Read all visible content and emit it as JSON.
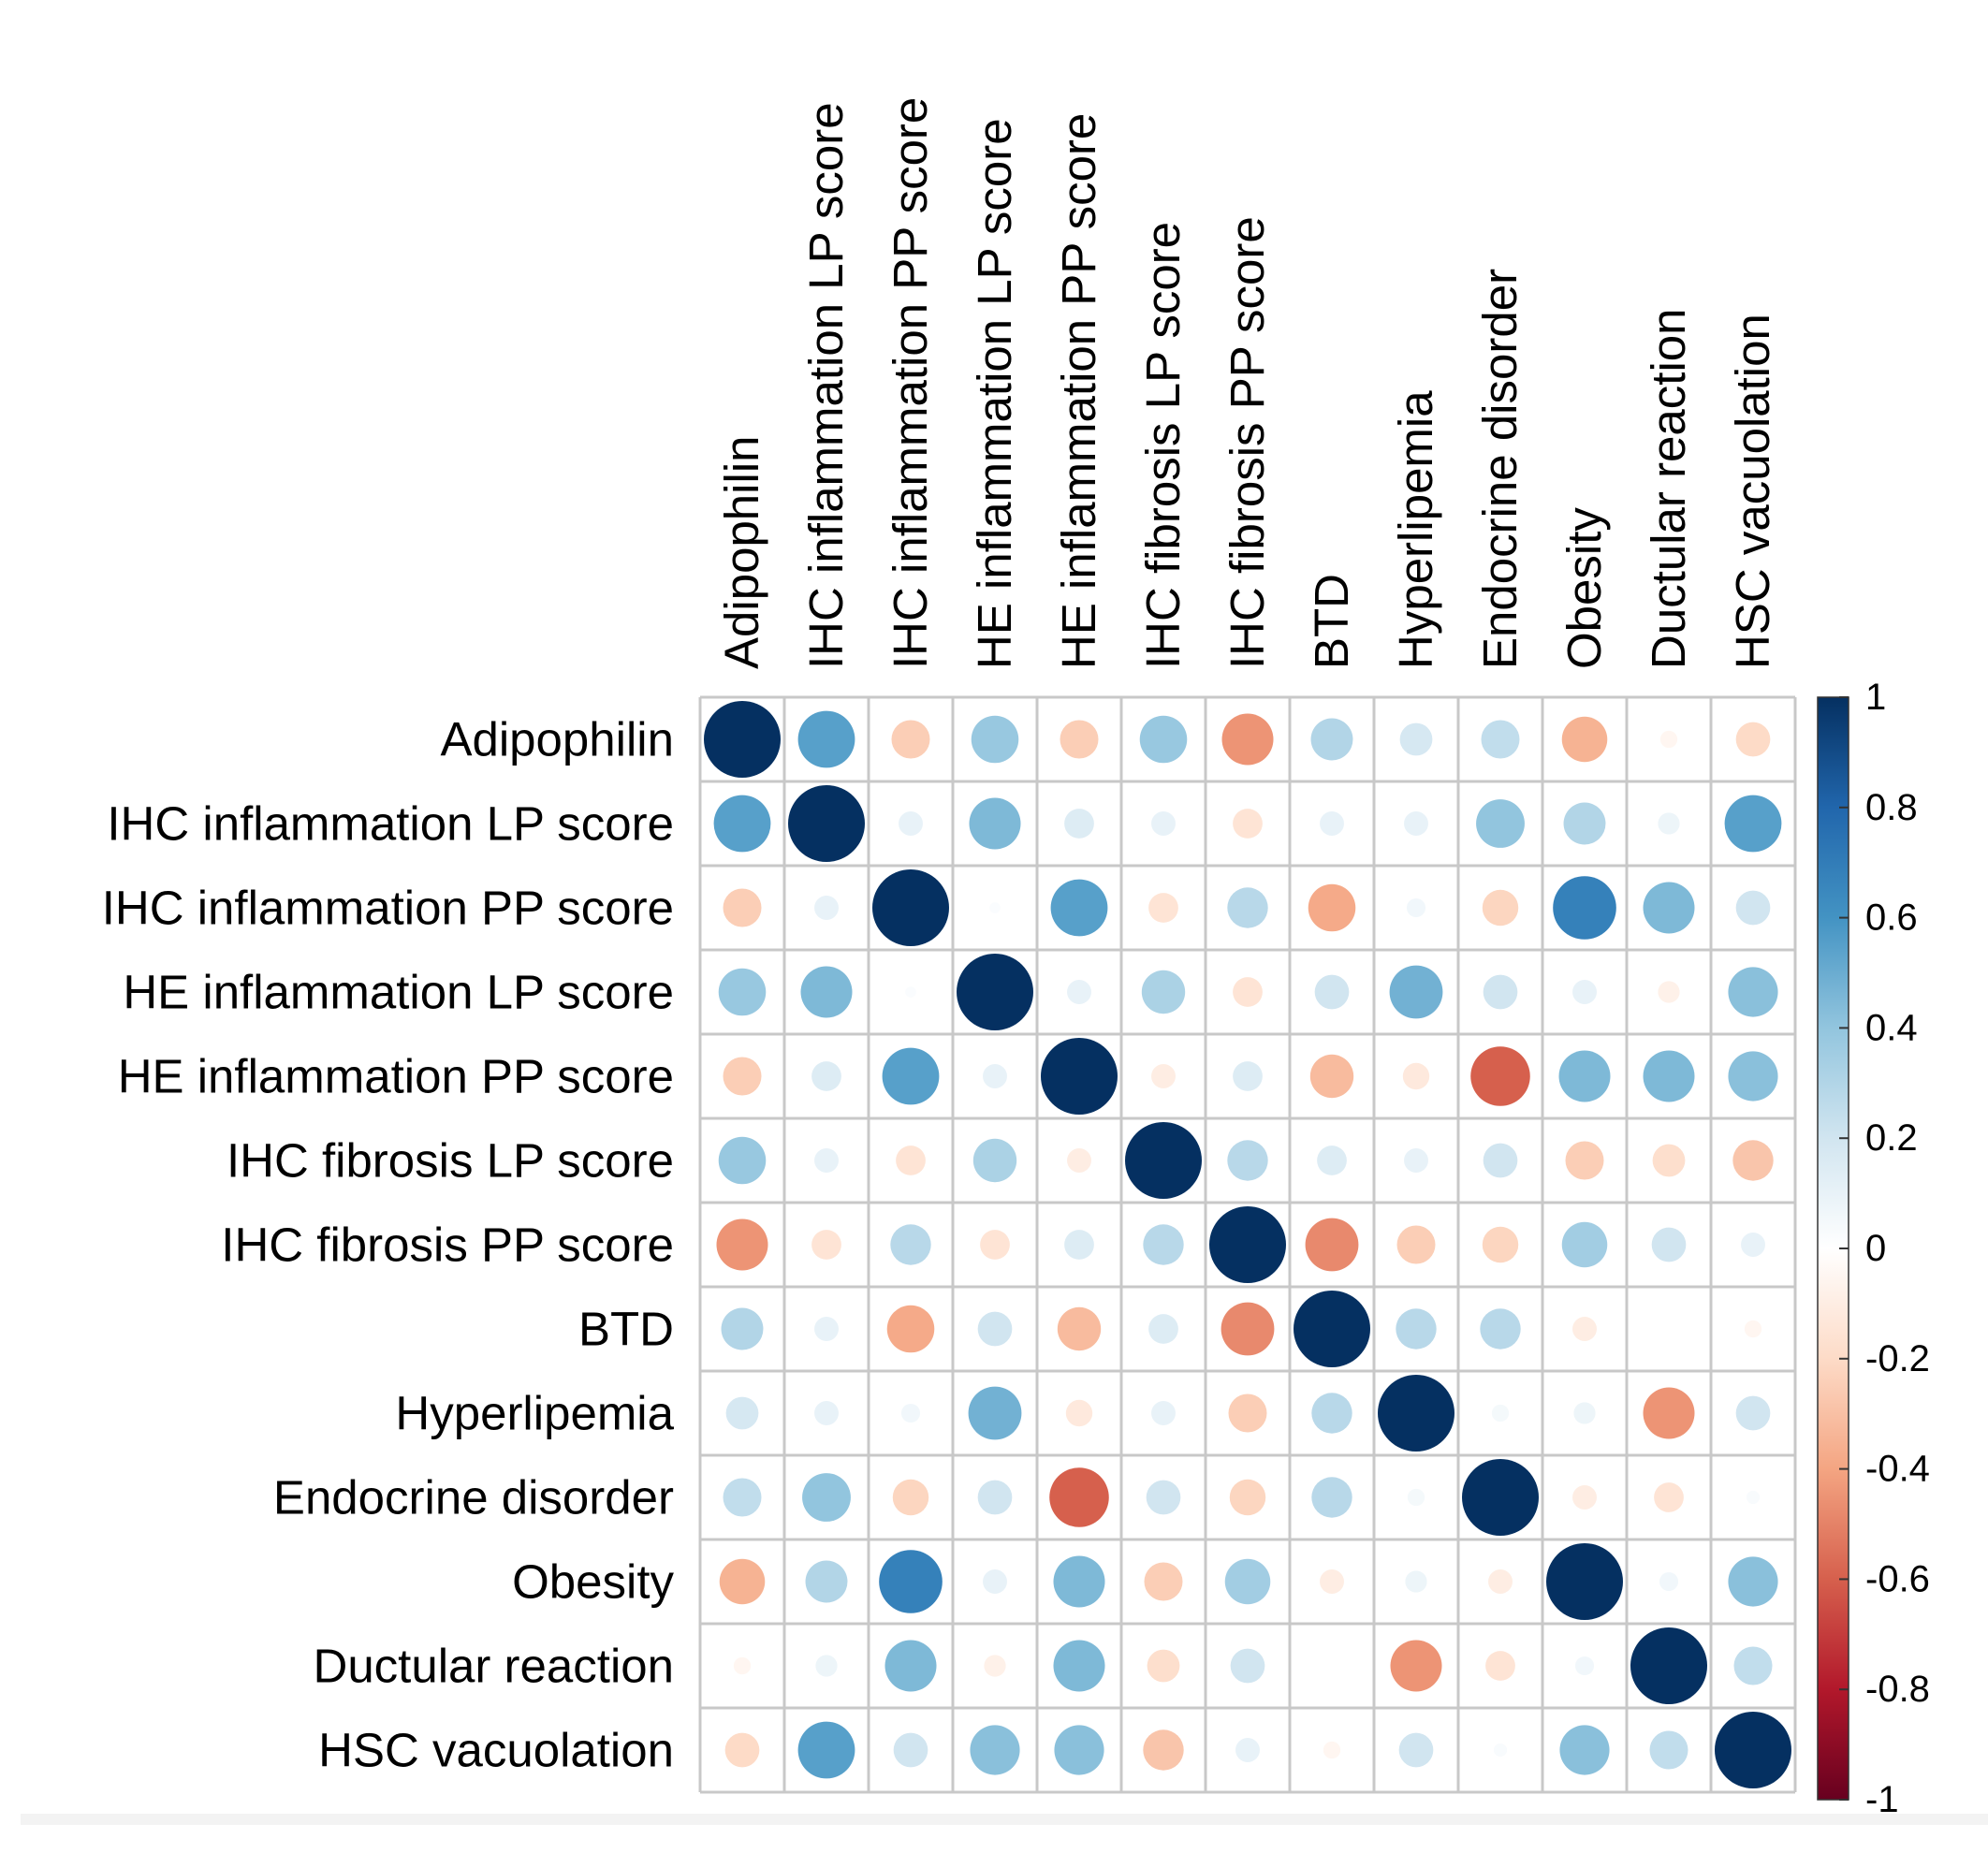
{
  "chart_data": {
    "type": "heatmap",
    "title": "",
    "variables": [
      "Adipophilin",
      "IHC inflammation LP score",
      "IHC inflammation PP score",
      "HE inflammation LP score",
      "HE inflammation PP score",
      "IHC fibrosis LP score",
      "IHC fibrosis PP score",
      "BTD",
      "Hyperlipemia",
      "Endocrine disorder",
      "Obesity",
      "Ductular reaction",
      "HSC vacuolation"
    ],
    "matrix": [
      [
        1,
        0.55,
        -0.25,
        0.38,
        -0.25,
        0.38,
        -0.45,
        0.3,
        0.18,
        0.25,
        -0.35,
        -0.05,
        -0.2
      ],
      [
        0.55,
        1,
        0.1,
        0.45,
        0.15,
        0.1,
        -0.15,
        0.1,
        0.1,
        0.4,
        0.3,
        0.08,
        0.55
      ],
      [
        -0.25,
        0.1,
        1,
        0.02,
        0.55,
        -0.15,
        0.28,
        -0.38,
        0.06,
        -0.22,
        0.68,
        0.45,
        0.2
      ],
      [
        0.38,
        0.45,
        0.02,
        1,
        0.1,
        0.32,
        -0.15,
        0.2,
        0.48,
        0.2,
        0.1,
        -0.08,
        0.42
      ],
      [
        -0.25,
        0.15,
        0.55,
        0.1,
        1,
        -0.1,
        0.15,
        -0.32,
        -0.12,
        -0.6,
        0.45,
        0.45,
        0.42
      ],
      [
        0.38,
        0.1,
        -0.15,
        0.32,
        -0.1,
        1,
        0.28,
        0.15,
        0.1,
        0.2,
        -0.25,
        -0.18,
        -0.28
      ],
      [
        -0.45,
        -0.15,
        0.28,
        -0.15,
        0.15,
        0.28,
        1,
        -0.48,
        -0.25,
        -0.22,
        0.35,
        0.2,
        0.1
      ],
      [
        0.3,
        0.1,
        -0.38,
        0.2,
        -0.32,
        0.15,
        -0.48,
        1,
        0.28,
        0.28,
        -0.1,
        0,
        -0.05
      ],
      [
        0.18,
        0.1,
        0.06,
        0.48,
        -0.12,
        0.1,
        -0.25,
        0.28,
        1,
        0.05,
        0.08,
        -0.45,
        0.2
      ],
      [
        0.25,
        0.4,
        -0.22,
        0.2,
        -0.6,
        0.2,
        -0.22,
        0.28,
        0.05,
        1,
        -0.1,
        -0.15,
        0.03
      ],
      [
        -0.35,
        0.3,
        0.68,
        0.1,
        0.45,
        -0.25,
        0.35,
        -0.1,
        0.08,
        -0.1,
        1,
        0.06,
        0.42
      ],
      [
        -0.05,
        0.08,
        0.45,
        -0.08,
        0.45,
        -0.18,
        0.2,
        0,
        -0.45,
        -0.15,
        0.06,
        1,
        0.25
      ],
      [
        -0.2,
        0.55,
        0.2,
        0.42,
        0.42,
        -0.28,
        0.1,
        -0.05,
        0.2,
        0.03,
        0.42,
        0.25,
        1
      ]
    ],
    "color_scale": {
      "min": -1,
      "max": 1,
      "ticks": [
        "1",
        "0.8",
        "0.6",
        "0.4",
        "0.2",
        "0",
        "-0.2",
        "-0.4",
        "-0.6",
        "-0.8",
        "-1"
      ],
      "colors": [
        "#67001f",
        "#b2182b",
        "#d6604d",
        "#f4a582",
        "#fddbc7",
        "#ffffff",
        "#d1e5f0",
        "#92c5de",
        "#4393c3",
        "#2166ac",
        "#053061"
      ]
    },
    "legend": "right",
    "grid": true
  }
}
